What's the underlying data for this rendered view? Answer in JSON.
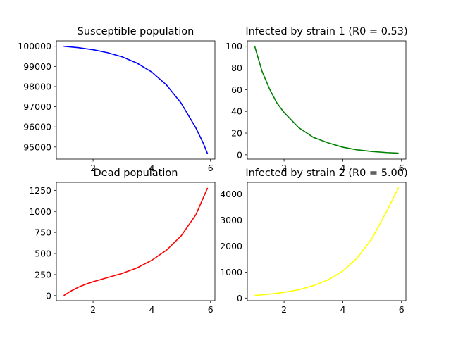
{
  "chart_data": [
    {
      "type": "line",
      "title": "Susceptible population",
      "xlabel": "",
      "ylabel": "",
      "xlim": [
        0.75,
        6.15
      ],
      "ylim": [
        94400,
        100270
      ],
      "xticks": [
        2,
        4,
        6
      ],
      "yticks": [
        95000,
        96000,
        97000,
        98000,
        99000,
        100000
      ],
      "series": [
        {
          "name": "Susceptible",
          "color": "#0000ff",
          "x": [
            1.0,
            1.5,
            2.0,
            2.5,
            3.0,
            3.5,
            4.0,
            4.5,
            5.0,
            5.5,
            5.75,
            5.9
          ],
          "y": [
            100000,
            99930,
            99830,
            99680,
            99470,
            99160,
            98720,
            98080,
            97180,
            95950,
            95200,
            94660
          ]
        }
      ]
    },
    {
      "type": "line",
      "title": "Infected by strain 1 (R0 = 0.53)",
      "xlabel": "",
      "ylabel": "",
      "xlim": [
        0.75,
        6.15
      ],
      "ylim": [
        -4,
        105
      ],
      "xticks": [
        2,
        4,
        6
      ],
      "yticks": [
        0,
        20,
        40,
        60,
        80,
        100
      ],
      "series": [
        {
          "name": "Infected strain 1",
          "color": "#008000",
          "x": [
            1.0,
            1.25,
            1.5,
            1.75,
            2.0,
            2.5,
            3.0,
            3.5,
            4.0,
            4.5,
            5.0,
            5.5,
            5.9
          ],
          "y": [
            100,
            77,
            61,
            48,
            39,
            25,
            16,
            11,
            7,
            4.5,
            3,
            2,
            1.5
          ]
        }
      ]
    },
    {
      "type": "line",
      "title": "Dead population",
      "xlabel": "",
      "ylabel": "",
      "xlim": [
        0.75,
        6.15
      ],
      "ylim": [
        -60,
        1345
      ],
      "xticks": [
        2,
        4,
        6
      ],
      "yticks": [
        0,
        250,
        500,
        750,
        1000,
        1250
      ],
      "series": [
        {
          "name": "Dead",
          "color": "#ff0000",
          "x": [
            1.0,
            1.25,
            1.5,
            1.75,
            2.0,
            2.5,
            3.0,
            3.5,
            4.0,
            4.5,
            5.0,
            5.5,
            5.9
          ],
          "y": [
            0,
            55,
            100,
            135,
            165,
            215,
            265,
            330,
            420,
            540,
            710,
            960,
            1280
          ]
        }
      ]
    },
    {
      "type": "line",
      "title": "Infected by strain 2 (R0 = 5.00)",
      "xlabel": "",
      "ylabel": "",
      "xlim": [
        0.75,
        6.15
      ],
      "ylim": [
        -100,
        4450
      ],
      "xticks": [
        2,
        4,
        6
      ],
      "yticks": [
        0,
        1000,
        2000,
        3000,
        4000
      ],
      "series": [
        {
          "name": "Infected strain 2",
          "color": "#ffff00",
          "x": [
            1.0,
            1.5,
            2.0,
            2.5,
            3.0,
            3.5,
            4.0,
            4.5,
            5.0,
            5.5,
            5.9
          ],
          "y": [
            100,
            150,
            220,
            320,
            480,
            700,
            1040,
            1550,
            2300,
            3350,
            4250
          ]
        }
      ]
    }
  ]
}
